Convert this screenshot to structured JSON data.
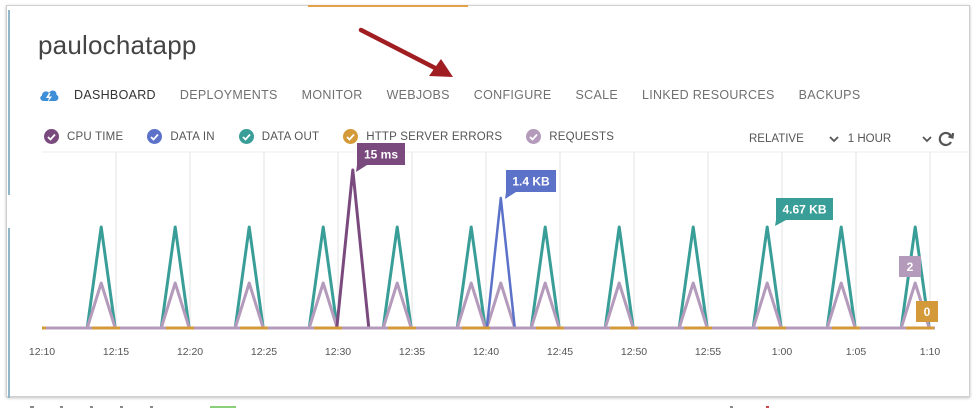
{
  "app": {
    "title": "paulochatapp"
  },
  "nav": {
    "logo_icon": "cloud-lightning-icon",
    "tabs": [
      {
        "label": "DASHBOARD",
        "active": true
      },
      {
        "label": "DEPLOYMENTS",
        "active": false
      },
      {
        "label": "MONITOR",
        "active": false
      },
      {
        "label": "WEBJOBS",
        "active": false
      },
      {
        "label": "CONFIGURE",
        "active": false
      },
      {
        "label": "SCALE",
        "active": false
      },
      {
        "label": "LINKED RESOURCES",
        "active": false
      },
      {
        "label": "BACKUPS",
        "active": false
      }
    ]
  },
  "legend": [
    {
      "label": "CPU TIME",
      "color": "#7a4a7e"
    },
    {
      "label": "DATA IN",
      "color": "#5b72c8"
    },
    {
      "label": "DATA OUT",
      "color": "#3a9e98"
    },
    {
      "label": "HTTP SERVER ERRORS",
      "color": "#d49a3a"
    },
    {
      "label": "REQUESTS",
      "color": "#b59bbb"
    }
  ],
  "controls": {
    "range_mode": "RELATIVE",
    "range_value": "1 HOUR",
    "refresh_icon": "refresh-icon"
  },
  "annotation": {
    "arrow_color": "#a01e22",
    "points_to": "CONFIGURE"
  },
  "chart_data": {
    "type": "line",
    "x_ticks": [
      "12:10",
      "12:15",
      "12:20",
      "12:25",
      "12:30",
      "12:35",
      "12:40",
      "12:45",
      "12:50",
      "12:55",
      "1:00",
      "1:05",
      "1:10"
    ],
    "callouts": [
      {
        "text": "15 ms",
        "series": "CPU TIME",
        "color": "#7a4a7e"
      },
      {
        "text": "1.4 KB",
        "series": "DATA IN",
        "color": "#5b72c8"
      },
      {
        "text": "4.67 KB",
        "series": "DATA OUT",
        "color": "#3a9e98"
      },
      {
        "text": "2",
        "series": "REQUESTS",
        "color": "#b59bbb"
      },
      {
        "text": "0",
        "series": "HTTP SERVER ERRORS",
        "color": "#d49a3a"
      }
    ],
    "series": [
      {
        "name": "DATA OUT",
        "color": "#3a9e98",
        "spikes": [
          "12:14",
          "12:19",
          "12:24",
          "12:29",
          "12:34",
          "12:39",
          "12:44",
          "12:49",
          "12:54",
          "12:59",
          "1:04",
          "1:09"
        ],
        "peak": 4.67,
        "unit": "KB"
      },
      {
        "name": "REQUESTS",
        "color": "#b59bbb",
        "spikes": [
          "12:14",
          "12:19",
          "12:24",
          "12:29",
          "12:34",
          "12:39",
          "12:41",
          "12:44",
          "12:49",
          "12:54",
          "12:59",
          "1:04",
          "1:09"
        ],
        "peak": 2,
        "unit": ""
      },
      {
        "name": "CPU TIME",
        "color": "#7a4a7e",
        "spikes": [
          "12:31"
        ],
        "peak": 15,
        "unit": "ms"
      },
      {
        "name": "DATA IN",
        "color": "#5b72c8",
        "spikes": [
          "12:41"
        ],
        "peak": 1.4,
        "unit": "KB"
      },
      {
        "name": "HTTP SERVER ERRORS",
        "color": "#d49a3a",
        "spikes": [],
        "peak": 0,
        "unit": ""
      }
    ]
  }
}
